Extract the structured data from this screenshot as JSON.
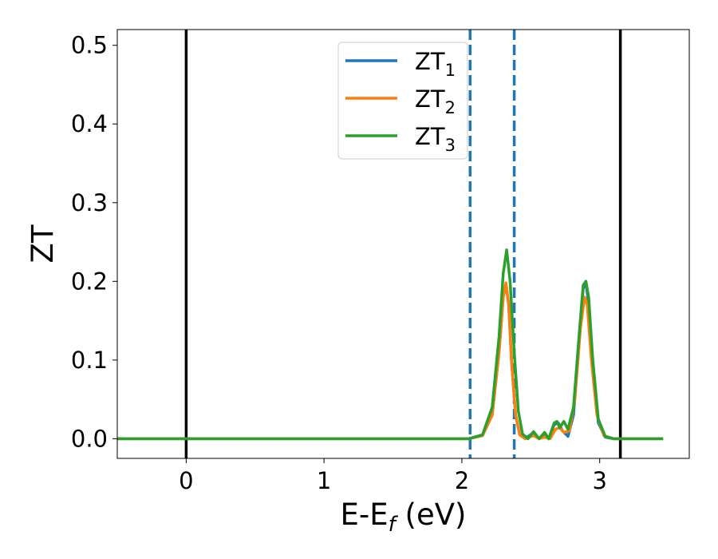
{
  "chart_data": {
    "type": "line",
    "xlabel": "E-E",
    "xlabel_sub": "f",
    "xlabel_unit": " (eV)",
    "ylabel": "ZT",
    "xlim": [
      -0.5,
      3.65
    ],
    "ylim": [
      -0.025,
      0.52
    ],
    "xticks": [
      0,
      1,
      2,
      3
    ],
    "xtick_labels": [
      "0",
      "1",
      "2",
      "3"
    ],
    "yticks": [
      0.0,
      0.1,
      0.2,
      0.3,
      0.4,
      0.5
    ],
    "ytick_labels": [
      "0.0",
      "0.1",
      "0.2",
      "0.3",
      "0.4",
      "0.5"
    ],
    "grid": false,
    "legend_position": "top-center",
    "vertical_lines": [
      {
        "x": 0.0,
        "style": "solid",
        "color": "#000000"
      },
      {
        "x": 3.15,
        "style": "solid",
        "color": "#000000"
      },
      {
        "x": 2.06,
        "style": "dashed",
        "color": "#1f77b4"
      },
      {
        "x": 2.38,
        "style": "dashed",
        "color": "#1f77b4"
      }
    ],
    "series": [
      {
        "name": "ZT",
        "sub": "1",
        "color": "#1f77b4",
        "points": [
          [
            -0.5,
            0
          ],
          [
            2.05,
            0
          ],
          [
            2.15,
            0.004
          ],
          [
            2.22,
            0.03
          ],
          [
            2.27,
            0.11
          ],
          [
            2.3,
            0.18
          ],
          [
            2.32,
            0.196
          ],
          [
            2.34,
            0.17
          ],
          [
            2.36,
            0.1
          ],
          [
            2.39,
            0.03
          ],
          [
            2.42,
            0.005
          ],
          [
            2.46,
            0
          ],
          [
            2.52,
            0.008
          ],
          [
            2.56,
            0
          ],
          [
            2.6,
            0.007
          ],
          [
            2.63,
            0
          ],
          [
            2.67,
            0.018
          ],
          [
            2.7,
            0.02
          ],
          [
            2.73,
            0.01
          ],
          [
            2.77,
            0.003
          ],
          [
            2.81,
            0.03
          ],
          [
            2.85,
            0.12
          ],
          [
            2.88,
            0.19
          ],
          [
            2.9,
            0.2
          ],
          [
            2.92,
            0.17
          ],
          [
            2.95,
            0.09
          ],
          [
            2.99,
            0.02
          ],
          [
            3.04,
            0.002
          ],
          [
            3.1,
            0
          ],
          [
            3.46,
            0
          ]
        ]
      },
      {
        "name": "ZT",
        "sub": "2",
        "color": "#ff7f0e",
        "points": [
          [
            -0.5,
            0
          ],
          [
            2.05,
            0
          ],
          [
            2.15,
            0.004
          ],
          [
            2.22,
            0.03
          ],
          [
            2.27,
            0.11
          ],
          [
            2.3,
            0.18
          ],
          [
            2.32,
            0.198
          ],
          [
            2.34,
            0.17
          ],
          [
            2.36,
            0.1
          ],
          [
            2.39,
            0.03
          ],
          [
            2.42,
            0.005
          ],
          [
            2.46,
            0
          ],
          [
            2.52,
            0.004
          ],
          [
            2.56,
            0
          ],
          [
            2.6,
            0.002
          ],
          [
            2.64,
            0
          ],
          [
            2.68,
            0.012
          ],
          [
            2.71,
            0.014
          ],
          [
            2.74,
            0.008
          ],
          [
            2.78,
            0.01
          ],
          [
            2.82,
            0.05
          ],
          [
            2.86,
            0.14
          ],
          [
            2.89,
            0.18
          ],
          [
            2.91,
            0.17
          ],
          [
            2.94,
            0.1
          ],
          [
            2.98,
            0.03
          ],
          [
            3.03,
            0.004
          ],
          [
            3.1,
            0
          ],
          [
            3.46,
            0
          ]
        ]
      },
      {
        "name": "ZT",
        "sub": "3",
        "color": "#2ca02c",
        "points": [
          [
            -0.5,
            0
          ],
          [
            2.05,
            0
          ],
          [
            2.15,
            0.005
          ],
          [
            2.22,
            0.04
          ],
          [
            2.27,
            0.13
          ],
          [
            2.3,
            0.21
          ],
          [
            2.325,
            0.24
          ],
          [
            2.35,
            0.2
          ],
          [
            2.38,
            0.11
          ],
          [
            2.41,
            0.035
          ],
          [
            2.44,
            0.006
          ],
          [
            2.48,
            0
          ],
          [
            2.52,
            0.009
          ],
          [
            2.56,
            0
          ],
          [
            2.6,
            0.008
          ],
          [
            2.63,
            0
          ],
          [
            2.67,
            0.02
          ],
          [
            2.69,
            0.022
          ],
          [
            2.71,
            0.014
          ],
          [
            2.74,
            0.022
          ],
          [
            2.77,
            0.012
          ],
          [
            2.81,
            0.04
          ],
          [
            2.85,
            0.13
          ],
          [
            2.88,
            0.195
          ],
          [
            2.9,
            0.2
          ],
          [
            2.92,
            0.18
          ],
          [
            2.95,
            0.1
          ],
          [
            2.99,
            0.025
          ],
          [
            3.04,
            0.003
          ],
          [
            3.1,
            0
          ],
          [
            3.46,
            0
          ]
        ]
      }
    ]
  }
}
